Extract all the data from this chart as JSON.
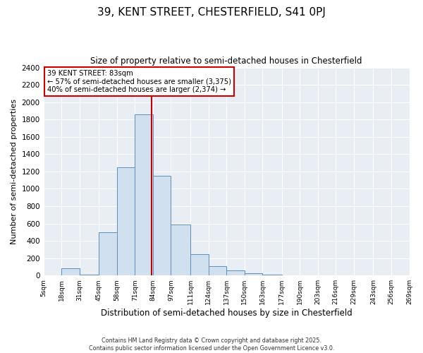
{
  "title": "39, KENT STREET, CHESTERFIELD, S41 0PJ",
  "subtitle": "Size of property relative to semi-detached houses in Chesterfield",
  "xlabel": "Distribution of semi-detached houses by size in Chesterfield",
  "ylabel": "Number of semi-detached properties",
  "footer_line1": "Contains HM Land Registry data © Crown copyright and database right 2025.",
  "footer_line2": "Contains public sector information licensed under the Open Government Licence v3.0.",
  "property_label": "39 KENT STREET: 83sqm",
  "annotation_line1": "← 57% of semi-detached houses are smaller (3,375)",
  "annotation_line2": "40% of semi-detached houses are larger (2,374) →",
  "bin_edges": [
    5,
    18,
    31,
    45,
    58,
    71,
    84,
    97,
    111,
    124,
    137,
    150,
    163,
    177,
    190,
    203,
    216,
    229,
    243,
    256,
    269
  ],
  "bin_counts": [
    5,
    80,
    10,
    500,
    1250,
    1860,
    1150,
    590,
    245,
    110,
    62,
    30,
    8,
    2,
    0,
    0,
    0,
    0,
    0,
    0
  ],
  "bar_facecolor": "#d0e0ef",
  "bar_edgecolor": "#5a8fbf",
  "vline_color": "#cc0000",
  "vline_x": 83,
  "box_facecolor": "#ffffff",
  "box_edgecolor": "#cc0000",
  "plot_bg_color": "#e8eef4",
  "fig_bg_color": "#ffffff",
  "ylim": [
    0,
    2400
  ],
  "yticks": [
    0,
    200,
    400,
    600,
    800,
    1000,
    1200,
    1400,
    1600,
    1800,
    2000,
    2200,
    2400
  ]
}
